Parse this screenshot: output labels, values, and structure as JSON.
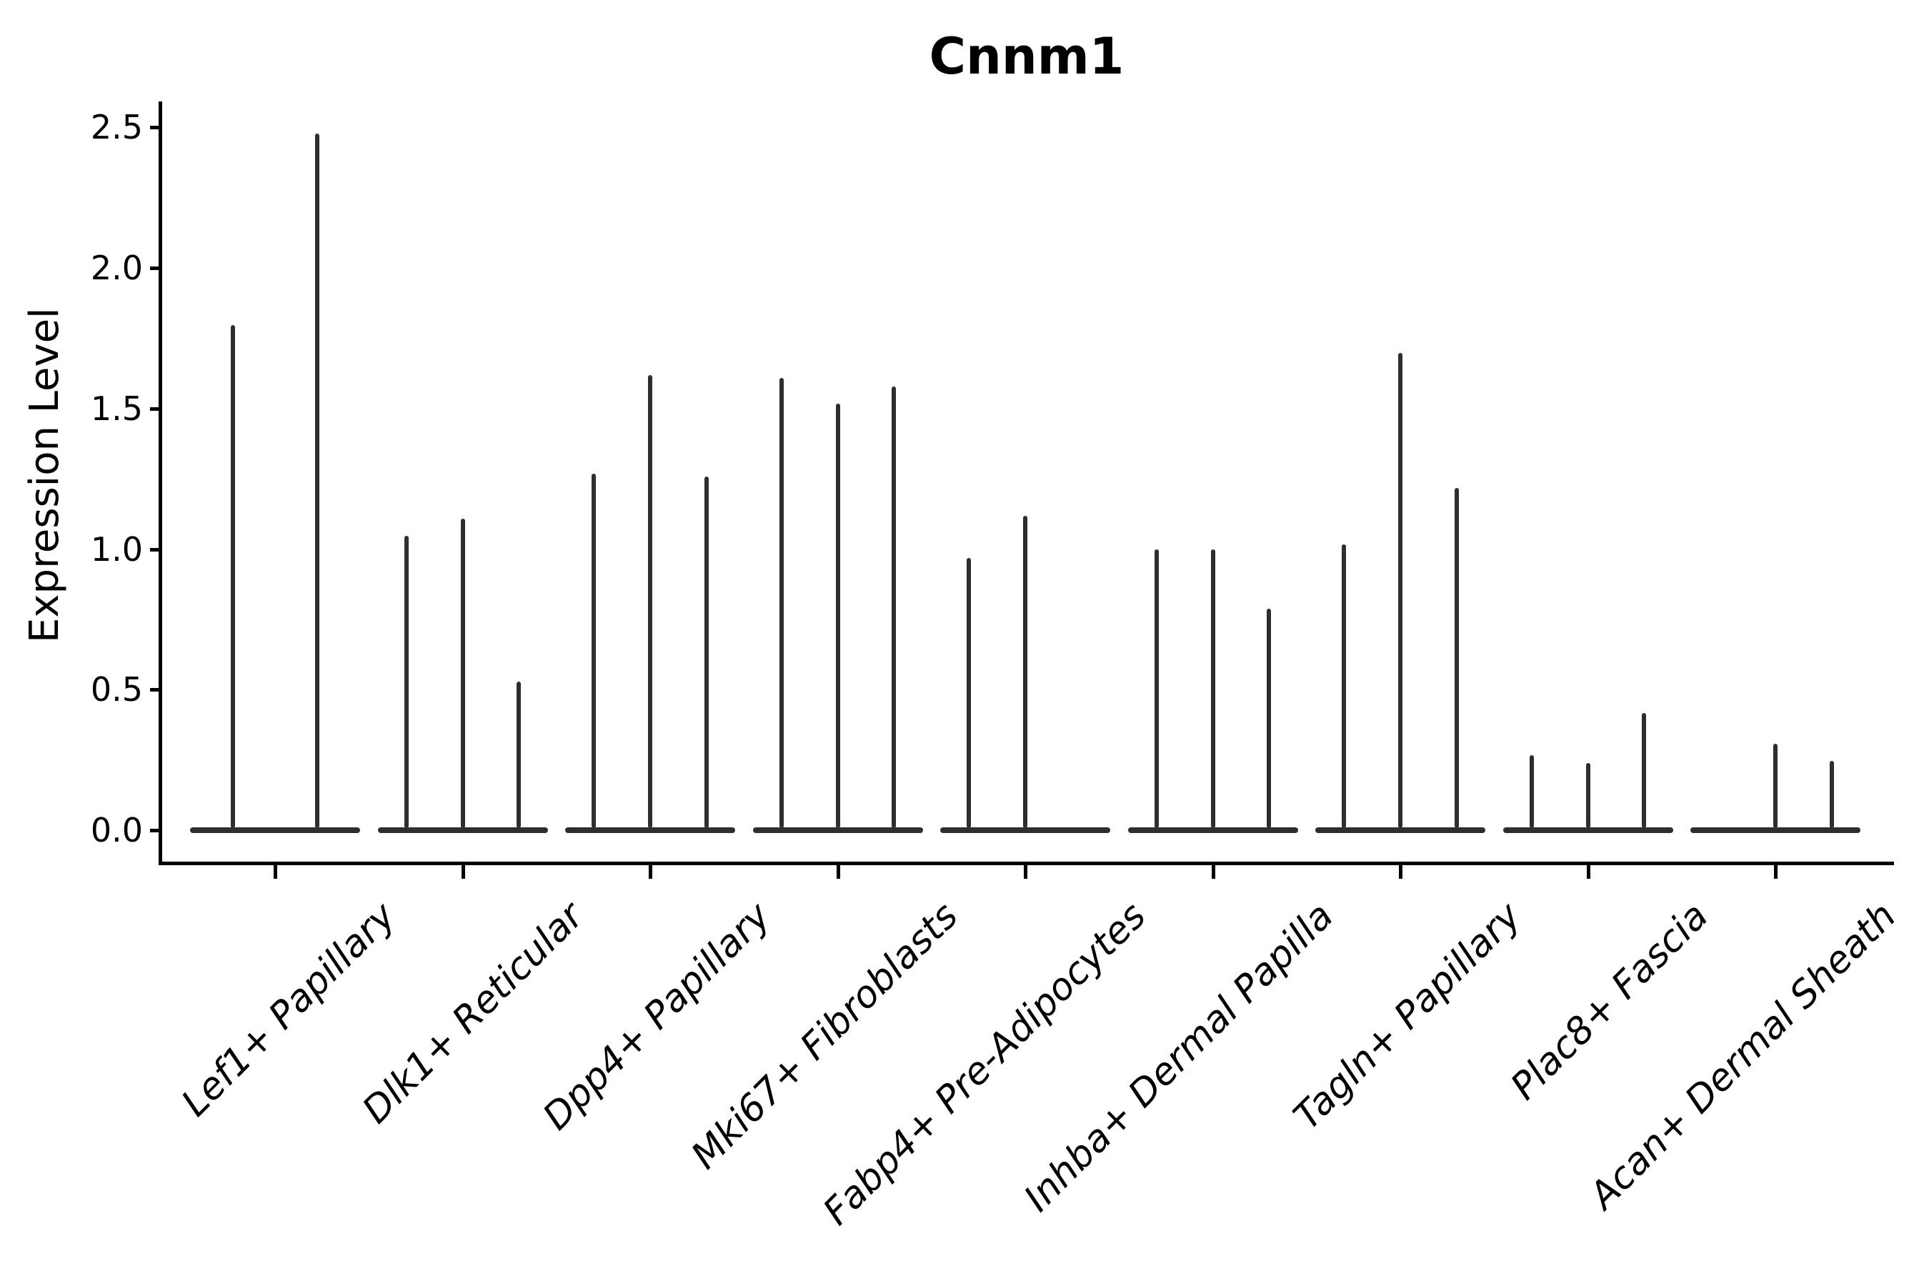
{
  "title": "Cnnm1",
  "ylabel": "Expression Level",
  "accent_colors": {
    "violin_line": "#2e2e2e",
    "axis": "#000000",
    "background": "#ffffff"
  },
  "chart_data": {
    "type": "violin",
    "title": "Cnnm1",
    "xlabel": "",
    "ylabel": "Expression Level",
    "ylim": [
      0,
      2.6
    ],
    "ytick_values": [
      0.0,
      0.5,
      1.0,
      1.5,
      2.0,
      2.5
    ],
    "ytick_labels": [
      "0.0",
      "0.5",
      "1.0",
      "1.5",
      "2.0",
      "2.5"
    ],
    "grid": "off",
    "legend": "none",
    "description": "Sparse single-cell expression violins; each cell-type category contains dodged split violins that collapse to a flat base at 0 with a thin spike up to the max expression value.",
    "categories": [
      "Lef1+ Papillary",
      "Dlk1+ Reticular",
      "Dpp4+ Papillary",
      "Mki67+ Fibroblasts",
      "Fabp4+ Pre-Adipocytes",
      "Inhba+ Dermal Papilla",
      "Tagln+ Papillary",
      "Plac8+ Fascia",
      "Acan+ Dermal Sheath"
    ],
    "groups": [
      {
        "category": "Lef1+ Papillary",
        "violins": [
          {
            "offset": -0.225,
            "max": 1.79
          },
          {
            "offset": 0.225,
            "max": 2.47
          }
        ]
      },
      {
        "category": "Dlk1+ Reticular",
        "violins": [
          {
            "offset": -0.3,
            "max": 1.04
          },
          {
            "offset": 0.0,
            "max": 1.1
          },
          {
            "offset": 0.3,
            "max": 0.52
          }
        ]
      },
      {
        "category": "Dpp4+ Papillary",
        "violins": [
          {
            "offset": -0.3,
            "max": 1.26
          },
          {
            "offset": 0.0,
            "max": 1.61
          },
          {
            "offset": 0.3,
            "max": 1.25
          }
        ]
      },
      {
        "category": "Mki67+ Fibroblasts",
        "violins": [
          {
            "offset": -0.3,
            "max": 1.6
          },
          {
            "offset": 0.0,
            "max": 1.51
          },
          {
            "offset": 0.3,
            "max": 1.57
          }
        ]
      },
      {
        "category": "Fabp4+ Pre-Adipocytes",
        "violins": [
          {
            "offset": -0.3,
            "max": 0.96
          },
          {
            "offset": 0.0,
            "max": 1.11
          },
          {
            "offset": 0.3,
            "max": 0.0
          }
        ]
      },
      {
        "category": "Inhba+ Dermal Papilla",
        "violins": [
          {
            "offset": -0.3,
            "max": 0.99
          },
          {
            "offset": 0.0,
            "max": 0.99
          },
          {
            "offset": 0.3,
            "max": 0.78
          }
        ]
      },
      {
        "category": "Tagln+ Papillary",
        "violins": [
          {
            "offset": -0.3,
            "max": 1.01
          },
          {
            "offset": 0.0,
            "max": 1.69
          },
          {
            "offset": 0.3,
            "max": 1.21
          }
        ]
      },
      {
        "category": "Plac8+ Fascia",
        "violins": [
          {
            "offset": -0.3,
            "max": 0.26
          },
          {
            "offset": 0.0,
            "max": 0.23
          },
          {
            "offset": 0.3,
            "max": 0.41
          }
        ]
      },
      {
        "category": "Acan+ Dermal Sheath",
        "violins": [
          {
            "offset": -0.3,
            "max": 0.0
          },
          {
            "offset": 0.0,
            "max": 0.3
          },
          {
            "offset": 0.3,
            "max": 0.24
          }
        ]
      }
    ]
  }
}
